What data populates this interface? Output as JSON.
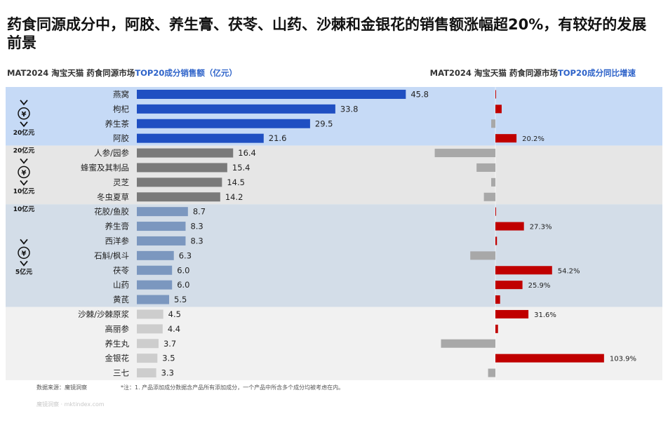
{
  "title": "药食同源成分中，阿胶、养生膏、茯苓、山药、沙棘和金银花的销售额涨幅超20%，有较好的发展前景",
  "left_subtitle": {
    "prefix": "MAT2024 淘宝天猫 药食同源市场",
    "highlight": "TOP20成分销售额（亿元）"
  },
  "right_subtitle": {
    "prefix": "MAT2024 淘宝天猫 药食同源市场",
    "highlight": "TOP20成分同比增速"
  },
  "colors": {
    "band_1": "#c6daf6",
    "band_2": "#e6e6e6",
    "band_3": "#d3dde8",
    "band_4": "#f1f1f1",
    "bar_blue": "#1f4fc2",
    "bar_grey": "#7a7a7a",
    "bar_steel": "#7b97bf",
    "bar_light": "#cdcdcd",
    "growth_pos": "#c00000",
    "growth_neg": "#a8a8a8"
  },
  "tiers": [
    {
      "top": "",
      "icon": "yuan-circle-icon",
      "bottom": "20亿元"
    },
    {
      "top": "20亿元",
      "icon": "yuan-circle-icon",
      "bottom": "10亿元"
    },
    {
      "top": "10亿元",
      "icon": "yuan-circle-icon",
      "bottom": "5亿元"
    }
  ],
  "chart_data": [
    {
      "type": "bar",
      "orientation": "horizontal",
      "title": "MAT2024 淘宝天猫 药食同源市场TOP20成分销售额（亿元）",
      "categories": [
        "燕窝",
        "枸杞",
        "养生茶",
        "阿胶",
        "人参/园参",
        "蜂蜜及其制品",
        "灵芝",
        "冬虫夏草",
        "花胶/鱼胶",
        "养生膏",
        "西洋参",
        "石斛/枫斗",
        "茯苓",
        "山药",
        "黄芪",
        "沙棘/沙棘原浆",
        "高丽参",
        "养生丸",
        "金银花",
        "三七"
      ],
      "values": [
        45.8,
        33.8,
        29.5,
        21.6,
        16.4,
        15.4,
        14.5,
        14.2,
        8.7,
        8.3,
        8.3,
        6.3,
        6.0,
        6.0,
        5.5,
        4.5,
        4.4,
        3.7,
        3.5,
        3.3
      ],
      "value_labels": [
        "45.8",
        "33.8",
        "29.5",
        "21.6",
        "16.4",
        "15.4",
        "14.5",
        "14.2",
        "8.7",
        "8.3",
        "8.3",
        "6.3",
        "6.0",
        "6.0",
        "5.5",
        "4.5",
        "4.4",
        "3.7",
        "3.5",
        "3.3"
      ],
      "tier_groups": [
        [
          0,
          3
        ],
        [
          4,
          7
        ],
        [
          8,
          14
        ],
        [
          15,
          19
        ]
      ],
      "xlim": [
        0,
        46
      ]
    },
    {
      "type": "bar",
      "orientation": "horizontal",
      "title": "MAT2024 淘宝天猫 药食同源市场TOP20成分同比增速",
      "categories": [
        "燕窝",
        "枸杞",
        "养生茶",
        "阿胶",
        "人参/园参",
        "蜂蜜及其制品",
        "灵芝",
        "冬虫夏草",
        "花胶/鱼胶",
        "养生膏",
        "西洋参",
        "石斛/枫斗",
        "茯苓",
        "山药",
        "黄芪",
        "沙棘/沙棘原浆",
        "高丽参",
        "养生丸",
        "金银花",
        "三七"
      ],
      "values": [
        0.2,
        6,
        -4,
        20.2,
        -58,
        -18,
        -4,
        -11,
        0.3,
        27.3,
        1.5,
        -24,
        54.2,
        25.9,
        4.5,
        31.6,
        2.5,
        -52,
        103.9,
        -7
      ],
      "value_labels": [
        "",
        "",
        "",
        "20.2%",
        "",
        "",
        "",
        "",
        "",
        "27.3%",
        "",
        "",
        "54.2%",
        "25.9%",
        "",
        "31.6%",
        "",
        "",
        "103.9%",
        ""
      ],
      "xlim": [
        -60,
        104
      ]
    }
  ],
  "footer": {
    "source": "数据来源：魔镜洞察",
    "note": "*注：1. 产品添加成分数据含产品所有添加成分，一个产品中所含多个成分均被考虑在内。",
    "watermark": "魔镜洞察 · mktindex.com"
  }
}
